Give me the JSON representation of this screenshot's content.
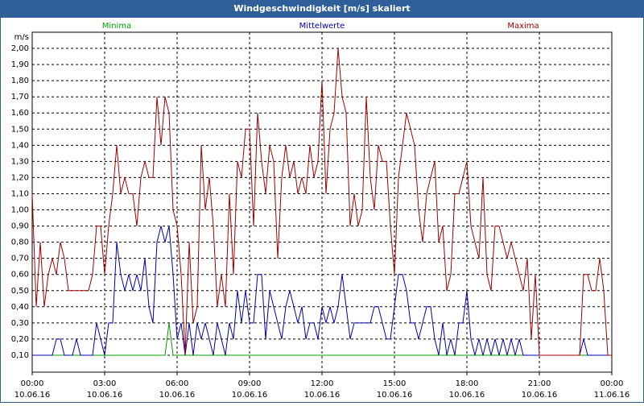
{
  "chart_data": {
    "type": "line",
    "title": "Windgeschwindigkeit [m/s] skaliert",
    "y_unit": "m/s",
    "x": [
      0,
      10,
      20,
      30,
      40,
      50,
      60,
      70,
      80,
      90,
      100,
      110,
      120,
      130,
      140,
      150,
      160,
      170,
      180,
      190,
      200,
      210,
      220,
      230,
      240,
      250,
      260,
      270,
      280,
      290,
      300,
      310,
      320,
      330,
      340,
      350,
      360,
      370,
      380,
      390,
      400,
      410,
      420,
      430,
      440,
      450,
      460,
      470,
      480,
      490,
      500,
      510,
      520,
      530,
      540,
      550,
      560,
      570,
      580,
      590,
      600,
      610,
      620,
      630,
      640,
      650,
      660,
      670,
      680,
      690,
      700,
      710,
      720,
      730,
      740,
      750,
      760,
      770,
      780,
      790,
      800,
      810,
      820,
      830,
      840,
      850,
      860,
      870,
      880,
      890,
      900,
      910,
      920,
      930,
      940,
      950,
      960,
      970,
      980,
      990,
      1000,
      1010,
      1020,
      1030,
      1040,
      1050,
      1060,
      1070,
      1080,
      1090,
      1100,
      1110,
      1120,
      1130,
      1140,
      1150,
      1160,
      1170,
      1180,
      1190,
      1200,
      1210,
      1220,
      1230,
      1240,
      1250,
      1260,
      1270,
      1280,
      1290,
      1300,
      1310,
      1320,
      1330,
      1340,
      1350,
      1360,
      1370,
      1380,
      1390,
      1400,
      1410,
      1420,
      1430,
      1440
    ],
    "series": [
      {
        "name": "Minima",
        "color": "#00a000",
        "values": [
          0.1,
          0.1,
          0.1,
          0.1,
          0.1,
          0.1,
          0.1,
          0.1,
          0.1,
          0.1,
          0.1,
          0.1,
          0.1,
          0.1,
          0.1,
          0.1,
          0.1,
          0.1,
          0.1,
          0.1,
          0.1,
          0.1,
          0.1,
          0.1,
          0.1,
          0.1,
          0.1,
          0.1,
          0.1,
          0.1,
          0.1,
          0.1,
          0.1,
          0.1,
          0.3,
          0.1,
          0.1,
          0.1,
          0.1,
          0.1,
          0.1,
          0.1,
          0.1,
          0.1,
          0.1,
          0.1,
          0.1,
          0.1,
          0.1,
          0.1,
          0.1,
          0.1,
          0.1,
          0.1,
          0.1,
          0.1,
          0.1,
          0.1,
          0.1,
          0.1,
          0.1,
          0.1,
          0.1,
          0.1,
          0.1,
          0.1,
          0.1,
          0.1,
          0.1,
          0.1,
          0.1,
          0.1,
          0.1,
          0.1,
          0.1,
          0.1,
          0.1,
          0.1,
          0.1,
          0.1,
          0.1,
          0.1,
          0.1,
          0.1,
          0.1,
          0.1,
          0.1,
          0.1,
          0.1,
          0.1,
          0.1,
          0.1,
          0.1,
          0.1,
          0.1,
          0.1,
          0.1,
          0.1,
          0.1,
          0.1,
          0.1,
          0.1,
          0.1,
          0.1,
          0.1,
          0.1,
          0.1,
          0.1,
          0.1,
          0.1,
          0.1,
          0.1,
          0.1,
          0.1,
          0.1,
          0.1,
          0.1,
          0.1,
          0.1,
          0.1,
          0.1,
          0.1,
          0.1,
          0.1,
          0.1,
          0.1,
          0.1,
          0.1,
          0.1,
          0.1,
          0.1,
          0.1,
          0.1,
          0.1,
          0.1,
          0.1,
          0.1,
          0.1,
          0.1,
          0.1,
          0.1,
          0.1,
          0.1,
          0.1,
          0.1
        ]
      },
      {
        "name": "Mittelwerte",
        "color": "#0000b0",
        "values": [
          0.1,
          0.1,
          0.1,
          0.1,
          0.1,
          0.1,
          0.2,
          0.2,
          0.1,
          0.1,
          0.1,
          0.2,
          0.1,
          0.1,
          0.1,
          0.1,
          0.3,
          0.2,
          0.1,
          0.3,
          0.3,
          0.8,
          0.6,
          0.5,
          0.6,
          0.5,
          0.6,
          0.5,
          0.7,
          0.4,
          0.3,
          0.8,
          0.9,
          0.8,
          0.9,
          0.6,
          0.2,
          0.3,
          0.1,
          0.3,
          0.1,
          0.3,
          0.2,
          0.3,
          0.2,
          0.1,
          0.3,
          0.2,
          0.1,
          0.3,
          0.2,
          0.5,
          0.3,
          0.5,
          0.3,
          0.3,
          0.6,
          0.6,
          0.2,
          0.5,
          0.4,
          0.3,
          0.2,
          0.4,
          0.5,
          0.4,
          0.3,
          0.4,
          0.2,
          0.3,
          0.3,
          0.2,
          0.4,
          0.3,
          0.4,
          0.3,
          0.4,
          0.6,
          0.4,
          0.2,
          0.3,
          0.3,
          0.3,
          0.3,
          0.3,
          0.4,
          0.4,
          0.3,
          0.2,
          0.2,
          0.4,
          0.6,
          0.6,
          0.5,
          0.3,
          0.3,
          0.2,
          0.3,
          0.4,
          0.4,
          0.2,
          0.1,
          0.3,
          0.1,
          0.2,
          0.1,
          0.3,
          0.3,
          0.5,
          0.2,
          0.1,
          0.2,
          0.1,
          0.2,
          0.1,
          0.2,
          0.1,
          0.2,
          0.1,
          0.2,
          0.1,
          0.2,
          0.1,
          0.1,
          0.1,
          0.1,
          0.1,
          0.1,
          0.1,
          0.1,
          0.1,
          0.1,
          0.1,
          0.1,
          0.1,
          0.1,
          0.1,
          0.2,
          0.1,
          0.1,
          0.1,
          0.1,
          0.1,
          0.1,
          0.1
        ]
      },
      {
        "name": "Maxima",
        "color": "#a00000",
        "values": [
          1.1,
          0.4,
          0.8,
          0.4,
          0.6,
          0.7,
          0.6,
          0.8,
          0.7,
          0.5,
          0.5,
          0.5,
          0.5,
          0.5,
          0.5,
          0.6,
          0.9,
          0.9,
          0.6,
          0.9,
          1.1,
          1.4,
          1.1,
          1.2,
          1.1,
          1.1,
          0.9,
          1.2,
          1.3,
          1.2,
          1.2,
          1.7,
          1.4,
          1.7,
          1.6,
          1.0,
          0.9,
          0.6,
          0.1,
          0.8,
          0.3,
          0.4,
          1.4,
          1.0,
          1.2,
          0.9,
          0.4,
          0.6,
          0.4,
          1.1,
          0.6,
          1.3,
          1.2,
          1.5,
          1.5,
          0.9,
          1.6,
          1.3,
          1.1,
          1.4,
          1.3,
          0.7,
          1.2,
          1.4,
          1.2,
          1.3,
          1.1,
          1.2,
          1.1,
          1.4,
          1.2,
          1.3,
          1.8,
          1.1,
          1.5,
          1.6,
          2.0,
          1.7,
          1.6,
          0.9,
          1.1,
          0.9,
          1.0,
          1.7,
          1.2,
          1.0,
          1.4,
          1.3,
          1.3,
          0.9,
          0.6,
          1.2,
          1.4,
          1.6,
          1.5,
          1.4,
          1.0,
          0.8,
          1.1,
          1.2,
          1.3,
          0.8,
          0.9,
          0.5,
          0.6,
          1.1,
          1.1,
          1.2,
          1.3,
          0.9,
          0.8,
          0.7,
          1.2,
          0.6,
          0.5,
          0.9,
          0.9,
          0.8,
          0.7,
          0.8,
          0.7,
          0.6,
          0.5,
          0.7,
          0.2,
          0.6,
          0.1,
          0.1,
          0.1,
          0.1,
          0.1,
          0.1,
          0.1,
          0.1,
          0.1,
          0.1,
          0.1,
          0.6,
          0.6,
          0.5,
          0.5,
          0.7,
          0.5,
          0.1,
          0.1
        ]
      }
    ],
    "xlim": [
      0,
      1440
    ],
    "xticks": [
      {
        "value": 0,
        "label": "00:00"
      },
      {
        "value": 180,
        "label": "03:00"
      },
      {
        "value": 360,
        "label": "06:00"
      },
      {
        "value": 540,
        "label": "09:00"
      },
      {
        "value": 720,
        "label": "12:00"
      },
      {
        "value": 900,
        "label": "15:00"
      },
      {
        "value": 1080,
        "label": "18:00"
      },
      {
        "value": 1260,
        "label": "21:00"
      },
      {
        "value": 1440,
        "label": "00:00"
      }
    ],
    "xtick_dates": [
      "10.06.16",
      "10.06.16",
      "10.06.16",
      "10.06.16",
      "10.06.16",
      "10.06.16",
      "10.06.16",
      "10.06.16",
      "11.06.16"
    ],
    "ylim": [
      0,
      2.1
    ],
    "yticks": [
      {
        "value": 0.1,
        "label": "0,10"
      },
      {
        "value": 0.2,
        "label": "0,20"
      },
      {
        "value": 0.3,
        "label": "0,30"
      },
      {
        "value": 0.4,
        "label": "0,40"
      },
      {
        "value": 0.5,
        "label": "0,50"
      },
      {
        "value": 0.6,
        "label": "0,60"
      },
      {
        "value": 0.7,
        "label": "0,70"
      },
      {
        "value": 0.8,
        "label": "0,80"
      },
      {
        "value": 0.9,
        "label": "0,90"
      },
      {
        "value": 1.0,
        "label": "1,00"
      },
      {
        "value": 1.1,
        "label": "1,10"
      },
      {
        "value": 1.2,
        "label": "1,20"
      },
      {
        "value": 1.3,
        "label": "1,30"
      },
      {
        "value": 1.4,
        "label": "1,40"
      },
      {
        "value": 1.5,
        "label": "1,50"
      },
      {
        "value": 1.6,
        "label": "1,60"
      },
      {
        "value": 1.7,
        "label": "1,70"
      },
      {
        "value": 1.8,
        "label": "1,80"
      },
      {
        "value": 1.9,
        "label": "1,90"
      },
      {
        "value": 2.0,
        "label": "2,00"
      }
    ],
    "grid": true
  }
}
